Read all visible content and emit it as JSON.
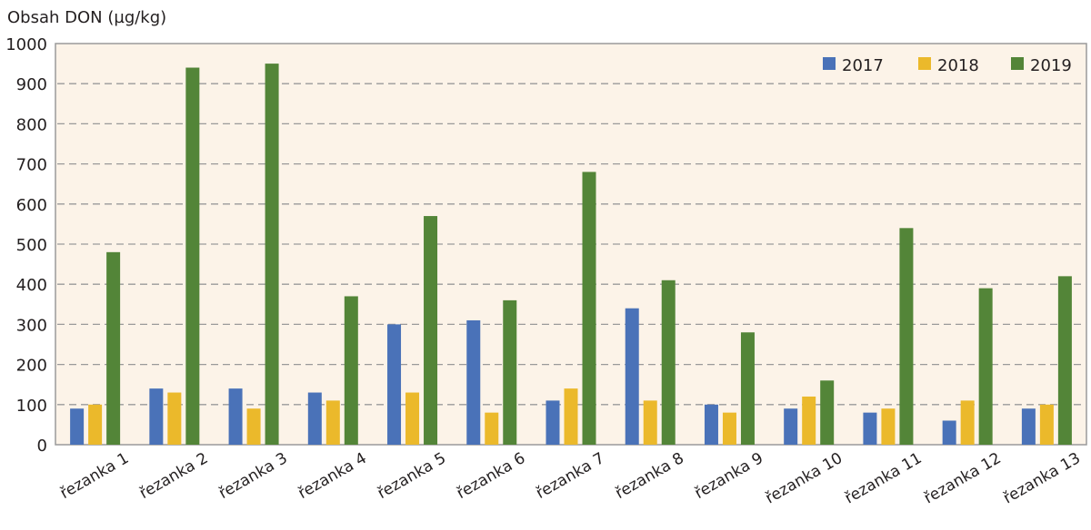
{
  "chart_data": {
    "type": "bar",
    "title": "",
    "ylabel": "Obsah DON (µg/kg)",
    "xlabel": "",
    "ylim": [
      0,
      1000
    ],
    "yticks": [
      0,
      100,
      200,
      300,
      400,
      500,
      600,
      700,
      800,
      900,
      1000
    ],
    "grid": "horizontal dashed",
    "legend_position": "top-right",
    "background": "#fcf3e8",
    "categories": [
      "řezanka 1",
      "řezanka 2",
      "řezanka 3",
      "řezanka 4",
      "řezanka 5",
      "řezanka 6",
      "řezanka 7",
      "řezanka 8",
      "řezanka 9",
      "řezanka 10",
      "řezanka 11",
      "řezanka 12",
      "řezanka 13"
    ],
    "series": [
      {
        "name": "2017",
        "color": "#4a72b8",
        "values": [
          90,
          140,
          140,
          130,
          300,
          310,
          110,
          340,
          100,
          90,
          80,
          60,
          90
        ]
      },
      {
        "name": "2018",
        "color": "#ebb92b",
        "values": [
          100,
          130,
          90,
          110,
          130,
          80,
          140,
          110,
          80,
          120,
          90,
          110,
          100
        ]
      },
      {
        "name": "2019",
        "color": "#538538",
        "values": [
          480,
          940,
          950,
          370,
          570,
          360,
          680,
          410,
          280,
          160,
          540,
          390,
          420
        ]
      }
    ]
  }
}
